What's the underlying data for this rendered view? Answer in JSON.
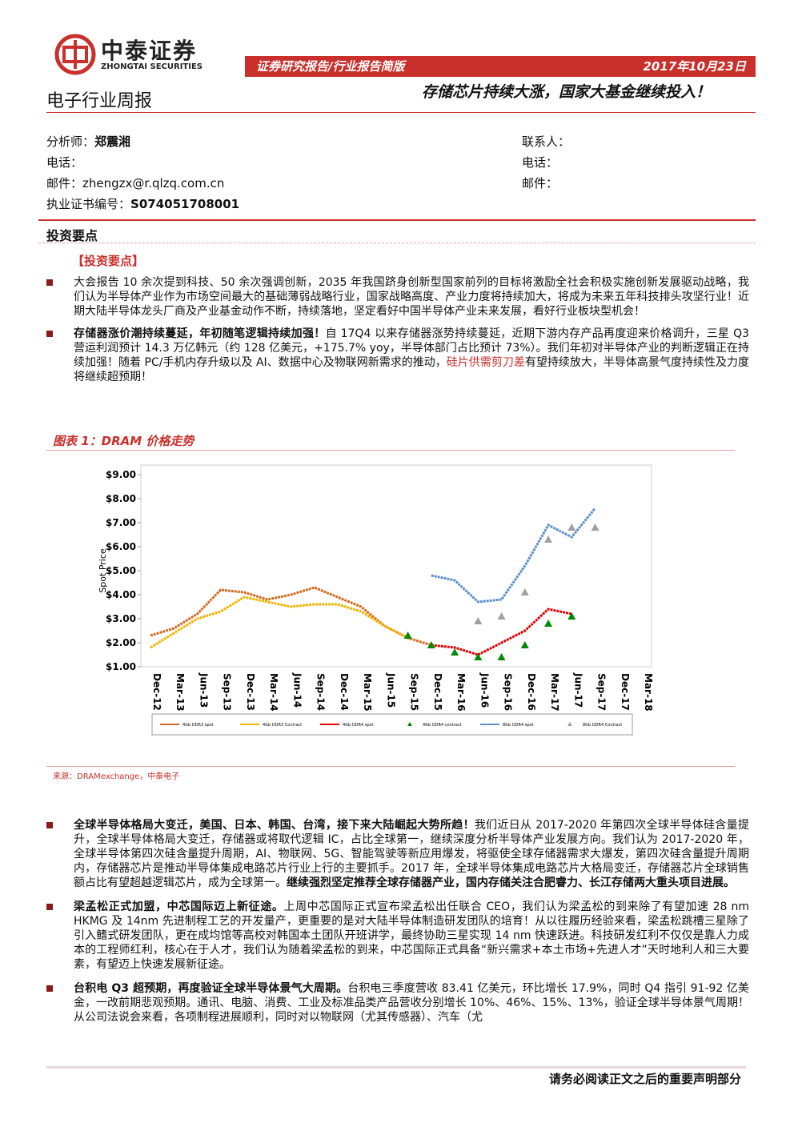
{
  "header": {
    "logo_cn": "中泰证券",
    "logo_en": "ZHONGTAI SECURITIES",
    "report_type": "证券研究报告/行业报告简版",
    "date": "2017年10月23日",
    "industry": "电子行业周报",
    "headline": "存储芯片持续大涨，国家大基金继续投入！"
  },
  "analyst": {
    "analyst_label": "分析师：",
    "analyst_name": "郑震湘",
    "phone_label": "电话：",
    "email_label": "邮件：",
    "email": "zhengzx@r.qlzq.com.cn",
    "cert_label": "执业证书编号：",
    "cert": "S074051708001"
  },
  "contact": {
    "contact_label": "联系人：",
    "phone_label": "电话：",
    "email_label": "邮件："
  },
  "section_title": "投资要点",
  "subsection": "【投资要点】",
  "bullets_top": [
    [
      {
        "text": "大会报告 10 余次提到科技、50 余次强调创新，2035 年我国跻身创新型国家前列的目标将激励全社会积极实施创新发展驱动战略，我们认为半导体产业作为市场空间最大的基础薄弱战略行业，国家战略高度、产业力度将持续加大，将成为未来五年科技排头攻坚行业！近期大陆半导体龙头厂商及产业基金动作不断，持续落地，坚定看好中国半导体产业未来发展，看好行业板块型机会！",
        "style": "plain"
      }
    ],
    [
      {
        "text": "存储器涨价潮持续蔓延，年初随笔逻辑持续加强！",
        "style": "bold"
      },
      {
        "text": "自 17Q4 以来存储器涨势持续蔓延，近期下游内存产品再度迎来价格调升，三星 Q3 营运利润预计 14.3 万亿韩元（约 128 亿美元，+175.7% yoy，半导体部门占比预计 73%）。我们年初对半导体产业的判断逻辑正在持续加强！随着 PC/手机内存升级以及 AI、数据中心及物联网新需求的推动，",
        "style": "plain"
      },
      {
        "text": "硅片供需剪刀差",
        "style": "red"
      },
      {
        "text": "有望持续放大，半导体高景气度持续性及力度将继续超预期！",
        "style": "plain"
      }
    ]
  ],
  "figure": {
    "title": "图表 1：DRAM 价格走势",
    "source": "来源：DRAMexchange，中泰电子"
  },
  "chart_data": {
    "type": "line",
    "y_label": "Spot Price",
    "categories": [
      "Dec-12",
      "Mar-13",
      "Jun-13",
      "Sep-13",
      "Dec-13",
      "Mar-14",
      "Jun-14",
      "Sep-14",
      "Dec-14",
      "Mar-15",
      "Jun-15",
      "Sep-15",
      "Dec-15",
      "Mar-16",
      "Jun-16",
      "Sep-16",
      "Dec-16",
      "Mar-17",
      "Jun-17",
      "Sep-17",
      "Dec-17",
      "Mar-18"
    ],
    "ylim": [
      1,
      9
    ],
    "yticks": [
      {
        "value": 1,
        "label": "$1.00"
      },
      {
        "value": 2,
        "label": "$2.00"
      },
      {
        "value": 3,
        "label": "$3.00"
      },
      {
        "value": 4,
        "label": "$4.00"
      },
      {
        "value": 5,
        "label": "$5.00"
      },
      {
        "value": 6,
        "label": "$6.00"
      },
      {
        "value": 7,
        "label": "$7.00"
      },
      {
        "value": 8,
        "label": "$8.00"
      },
      {
        "value": 9,
        "label": "$9.00"
      }
    ],
    "series": [
      {
        "name": "4Gb DDR3 spot",
        "color": "#d2691e",
        "marker": "line",
        "values": [
          2.3,
          2.6,
          3.2,
          4.2,
          4.1,
          3.8,
          4.0,
          4.3,
          3.9,
          3.5,
          2.7,
          2.2,
          1.9,
          null,
          null,
          null,
          null,
          null,
          null,
          null,
          null,
          null
        ]
      },
      {
        "name": "4Gb DDR3 Contract",
        "color": "#f0b400",
        "marker": "diamond",
        "values": [
          1.8,
          2.4,
          3.0,
          3.3,
          3.9,
          3.7,
          3.5,
          3.6,
          3.6,
          3.3,
          2.7,
          2.2,
          null,
          null,
          null,
          null,
          null,
          null,
          null,
          null,
          null,
          null
        ]
      },
      {
        "name": "4Gb DDR4 spot",
        "color": "#e00000",
        "marker": "line",
        "values": [
          null,
          null,
          null,
          null,
          null,
          null,
          null,
          null,
          null,
          null,
          null,
          null,
          1.9,
          1.8,
          1.5,
          2.0,
          2.5,
          3.4,
          3.2,
          null,
          null,
          null
        ]
      },
      {
        "name": "4Gb DDR4 contract",
        "color": "#008a00",
        "marker": "triangle",
        "values": [
          null,
          null,
          null,
          null,
          null,
          null,
          null,
          null,
          null,
          null,
          null,
          2.3,
          1.9,
          1.6,
          1.4,
          1.4,
          1.9,
          2.8,
          3.1,
          null,
          null,
          null
        ]
      },
      {
        "name": "8Gb DDR4 spot",
        "color": "#5b8fc9",
        "marker": "line",
        "values": [
          null,
          null,
          null,
          null,
          null,
          null,
          null,
          null,
          null,
          null,
          null,
          null,
          4.8,
          4.6,
          3.7,
          3.8,
          5.2,
          6.9,
          6.4,
          7.6,
          null,
          null
        ]
      },
      {
        "name": "8Gb DDR4 Contract",
        "color": "#a0a0a0",
        "marker": "triangle",
        "values": [
          null,
          null,
          null,
          null,
          null,
          null,
          null,
          null,
          null,
          null,
          null,
          null,
          null,
          null,
          2.9,
          3.1,
          4.1,
          6.3,
          6.8,
          6.8,
          null,
          null
        ]
      }
    ]
  },
  "bullets_bottom": [
    [
      {
        "text": "全球半导体格局大变迁，美国、日本、韩国、台湾，接下来大陆崛起大势所趋！",
        "style": "bold"
      },
      {
        "text": "我们近日从 2017-2020 年第四次全球半导体硅含量提升，全球半导体格局大变迁，存储器或将取代逻辑 IC，占比全球第一，继续深度分析半导体产业发展方向。我们认为 2017-2020 年，全球半导体第四次硅含量提升周期，AI、物联网、5G、智能驾驶等新应用爆发，将驱使全球存储器需求大爆发，第四次硅含量提升周期内，存储器芯片是推动半导体集成电路芯片行业上行的主要抓手。2017 年，全球半导体集成电路芯片大格局变迁，存储器芯片全球销售额占比有望超越逻辑芯片，成为全球第一。",
        "style": "plain"
      },
      {
        "text": "继续强烈坚定推荐全球存储器产业，国内存储关注合肥睿力、长江存储两大重头项目进展。",
        "style": "bold"
      }
    ],
    [
      {
        "text": "梁孟松正式加盟，中芯国际迈上新征途。",
        "style": "bold"
      },
      {
        "text": "上周中芯国际正式宣布梁孟松出任联合 CEO，我们认为梁孟松的到来除了有望加速 28 nm HKMG 及 14nm 先进制程工艺的开发量产，更重要的是对大陆半导体制造研发团队的培育！从以往履历经验来看，梁孟松跳槽三星除了引入鳍式研发团队，更在成均馆等高校对韩国本土团队开班讲学，最终协助三星实现 14 nm 快速跃进。科技研发红利不仅仅是靠人力成本的工程师红利，核心在于人才，我们认为随着梁孟松的到来，中芯国际正式具备“新兴需求+本土市场+先进人才”天时地利人和三大要素，有望迈上快速发展新征途。",
        "style": "plain"
      }
    ],
    [
      {
        "text": "台积电 Q3 超预期，再度验证全球半导体景气大周期。",
        "style": "bold"
      },
      {
        "text": "台积电三季度营收 83.41 亿美元，环比增长 17.9%，同时 Q4 指引 91-92 亿美金，一改前期悲观预期。通讯、电脑、消费、工业及标准品类产品营收分别增长 10%、46%、15%、13%，验证全球半导体景气周期！从公司法说会来看，各项制程进展顺利，同时对以物联网（尤其传感器）、汽车（尤",
        "style": "plain"
      }
    ]
  ],
  "footer": "请务必阅读正文之后的重要声明部分"
}
